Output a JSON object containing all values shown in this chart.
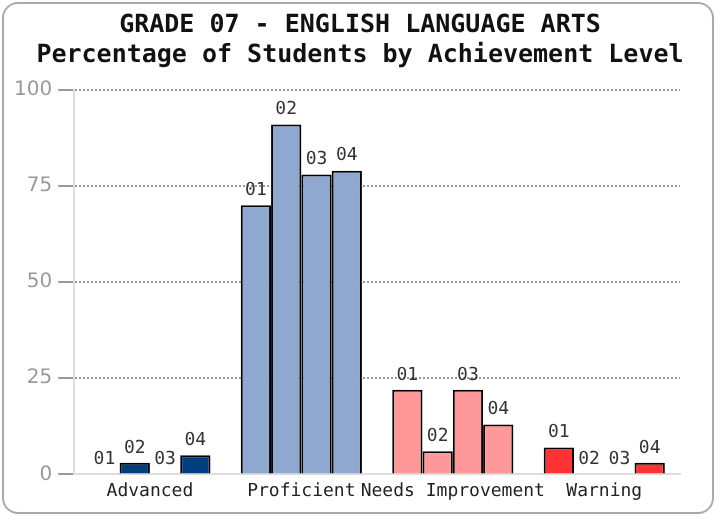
{
  "chart_data": {
    "type": "bar",
    "title": "GRADE 07 - ENGLISH LANGUAGE ARTS",
    "subtitle": "Percentage of Students by Achievement Level",
    "categories": [
      "Advanced",
      "Proficient",
      "Needs Improvement",
      "Warning"
    ],
    "series": [
      {
        "name": "01",
        "colors": [
          "#003f7f",
          "#8fa8cf",
          "#ff9999",
          "#ff3333"
        ],
        "values": [
          0,
          70,
          22,
          7
        ]
      },
      {
        "name": "02",
        "colors": [
          "#003f7f",
          "#8fa8cf",
          "#ff9999",
          "#ff3333"
        ],
        "values": [
          3,
          91,
          6,
          0
        ]
      },
      {
        "name": "03",
        "colors": [
          "#003f7f",
          "#8fa8cf",
          "#ff9999",
          "#ff3333"
        ],
        "values": [
          0,
          78,
          22,
          0
        ]
      },
      {
        "name": "04",
        "colors": [
          "#003f7f",
          "#8fa8cf",
          "#ff9999",
          "#ff3333"
        ],
        "values": [
          5,
          79,
          13,
          3
        ]
      }
    ],
    "ylim": [
      0,
      100
    ],
    "yticks": [
      0,
      25,
      50,
      75,
      100
    ],
    "grid": "y",
    "legend": false
  }
}
